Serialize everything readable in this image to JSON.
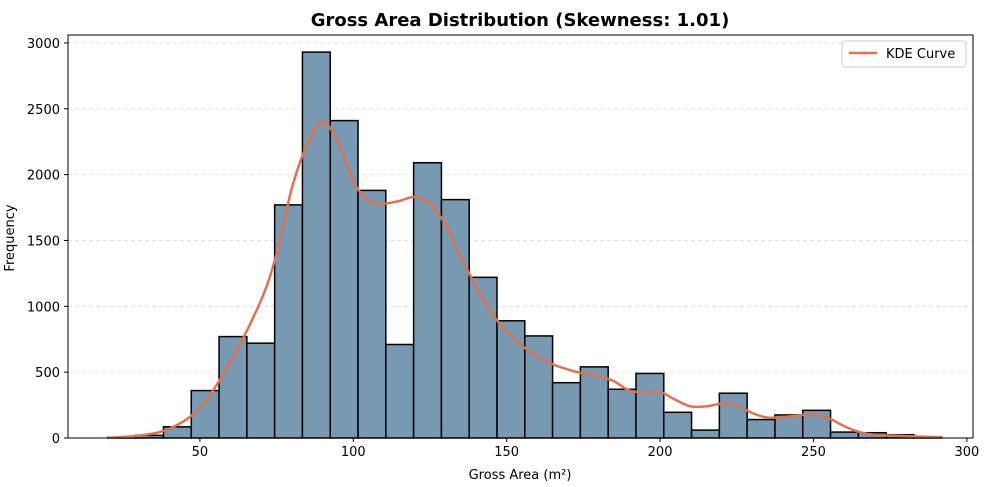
{
  "chart_data": {
    "type": "bar",
    "title": "Gross Area Distribution (Skewness: 1.01)",
    "xlabel": "Gross Area (m²)",
    "ylabel": "Frequency",
    "xlim": [
      7,
      302
    ],
    "ylim": [
      0,
      3060
    ],
    "xticks": [
      50,
      100,
      150,
      200,
      250,
      300
    ],
    "yticks": [
      0,
      500,
      1000,
      1500,
      2000,
      2500,
      3000
    ],
    "grid": "y-dashed",
    "bins": {
      "start": 20,
      "width": 9.06,
      "values": [
        5,
        20,
        85,
        360,
        770,
        720,
        1770,
        2930,
        2410,
        1880,
        710,
        2090,
        1810,
        1220,
        890,
        775,
        420,
        540,
        370,
        490,
        195,
        60,
        340,
        140,
        175,
        210,
        45,
        40,
        25,
        10
      ]
    },
    "series": [
      {
        "name": "KDE Curve",
        "x": [
          20,
          30,
          40,
          50,
          60,
          70,
          75,
          80,
          85,
          90,
          95,
          100,
          105,
          110,
          115,
          120,
          125,
          130,
          135,
          140,
          145,
          150,
          155,
          160,
          165,
          170,
          175,
          180,
          185,
          190,
          195,
          200,
          205,
          210,
          215,
          220,
          225,
          230,
          235,
          240,
          245,
          250,
          255,
          260,
          265,
          270,
          280,
          292
        ],
        "y": [
          2,
          18,
          70,
          230,
          580,
          1050,
          1400,
          1900,
          2230,
          2400,
          2250,
          1950,
          1800,
          1780,
          1800,
          1830,
          1780,
          1620,
          1380,
          1150,
          950,
          810,
          700,
          620,
          560,
          520,
          490,
          470,
          430,
          360,
          345,
          350,
          290,
          240,
          240,
          260,
          250,
          190,
          155,
          160,
          170,
          180,
          150,
          90,
          45,
          25,
          15,
          5
        ]
      }
    ],
    "legend": {
      "position": "top-right",
      "entries": [
        "KDE Curve"
      ]
    },
    "colors": {
      "bar_fill": "#7799b2",
      "bar_edge": "#000000",
      "kde": "#dd7350",
      "grid": "#d9d9d9"
    }
  }
}
